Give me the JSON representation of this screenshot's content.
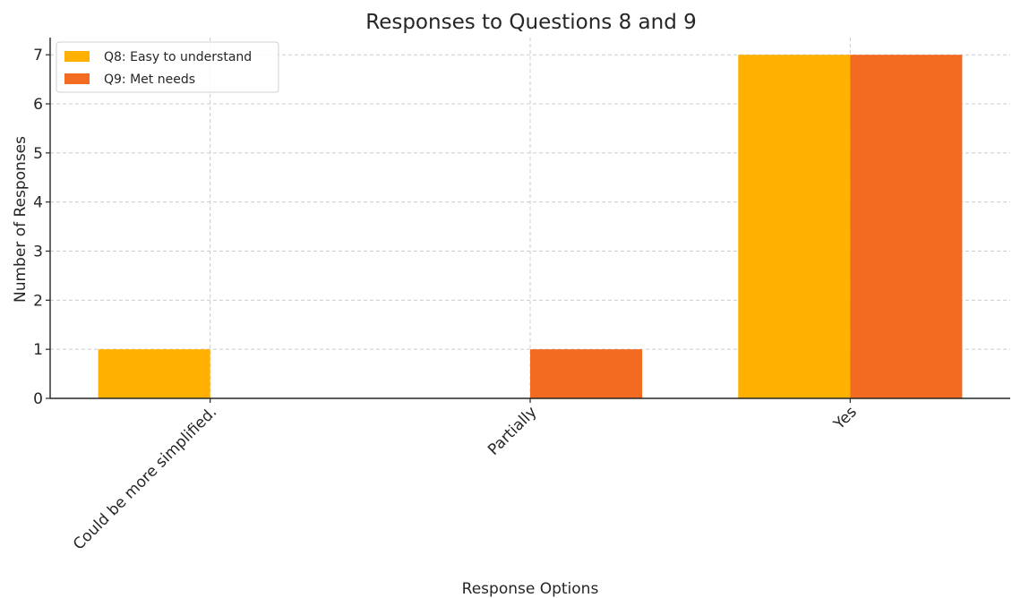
{
  "chart_data": {
    "type": "bar",
    "title": "Responses to Questions 8 and 9",
    "xlabel": "Response Options",
    "ylabel": "Number of Responses",
    "categories": [
      "Could be more simplified.",
      "Partially",
      "Yes"
    ],
    "series": [
      {
        "name": "Q8: Easy to understand",
        "values": [
          1,
          0,
          7
        ],
        "color": "#FFB000"
      },
      {
        "name": "Q9: Met needs",
        "values": [
          0,
          1,
          7
        ],
        "color": "#F26B21"
      }
    ],
    "ylim": [
      0,
      7.35
    ],
    "yticks": [
      0,
      1,
      2,
      3,
      4,
      5,
      6,
      7
    ],
    "grid": true,
    "legend_position": "top-left"
  }
}
